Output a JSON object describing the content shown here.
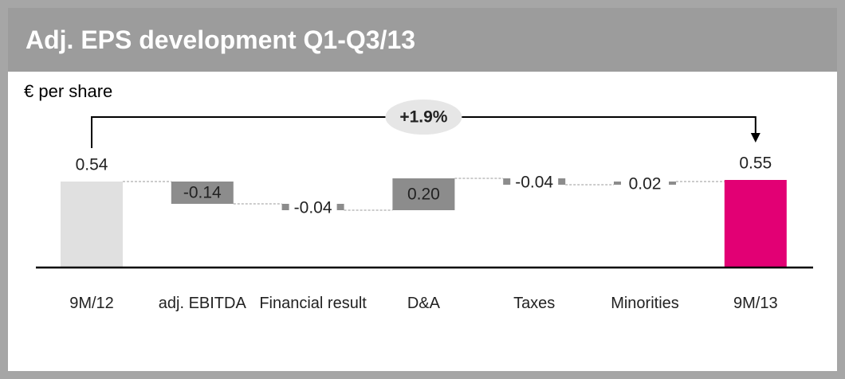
{
  "chart_data": {
    "type": "waterfall",
    "title": "Adj. EPS development Q1-Q3/13",
    "subtitle": "€ per share",
    "categories": [
      "9M/12",
      "adj. EBITDA",
      "Financial result",
      "D&A",
      "Taxes",
      "Minorities",
      "9M/13"
    ],
    "values": [
      0.54,
      -0.14,
      -0.04,
      0.2,
      -0.04,
      0.02,
      0.55
    ],
    "value_labels": [
      "0.54",
      "-0.14",
      "-0.04",
      "0.20",
      "-0.04",
      "0.02",
      "0.55"
    ],
    "colors": [
      "#e0e0e0",
      "#8c8c8c",
      "#8c8c8c",
      "#8c8c8c",
      "#8c8c8c",
      "#8c8c8c",
      "#e20074"
    ],
    "annotation": "+1.9%"
  }
}
